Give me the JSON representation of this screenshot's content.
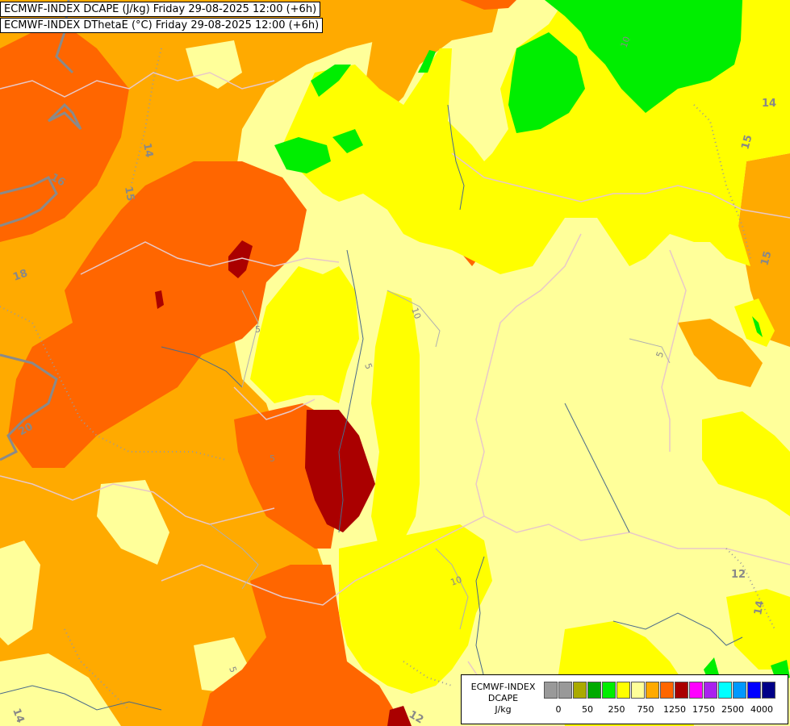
{
  "titles": {
    "line1": "ECMWF-INDEX DCAPE (J/kg) Friday 29-08-2025 12:00 (+6h)",
    "line2": "ECMWF-INDEX DThetaE (°C) Friday 29-08-2025 12:00 (+6h)"
  },
  "legend": {
    "title_line1": "ECMWF-INDEX",
    "title_line2": "DCAPE",
    "units": "J/kg",
    "colors": [
      "#999999",
      "#999999",
      "#aaaa00",
      "#00aa00",
      "#00ee00",
      "#ffff00",
      "#ffff99",
      "#ffaa00",
      "#ff6600",
      "#aa0000",
      "#ff00ff",
      "#aa22ee",
      "#00ffff",
      "#0099ff",
      "#0000ff",
      "#000088"
    ],
    "tick_labels": [
      "0",
      "50",
      "250",
      "750",
      "1250",
      "1750",
      "2500",
      "4000"
    ]
  },
  "contour_labels": [
    "14",
    "15",
    "16",
    "18",
    "20",
    "5",
    "10",
    "5",
    "5",
    "5",
    "5",
    "12",
    "14",
    "14",
    "15",
    "15",
    "10",
    "10",
    "12",
    "14"
  ]
}
